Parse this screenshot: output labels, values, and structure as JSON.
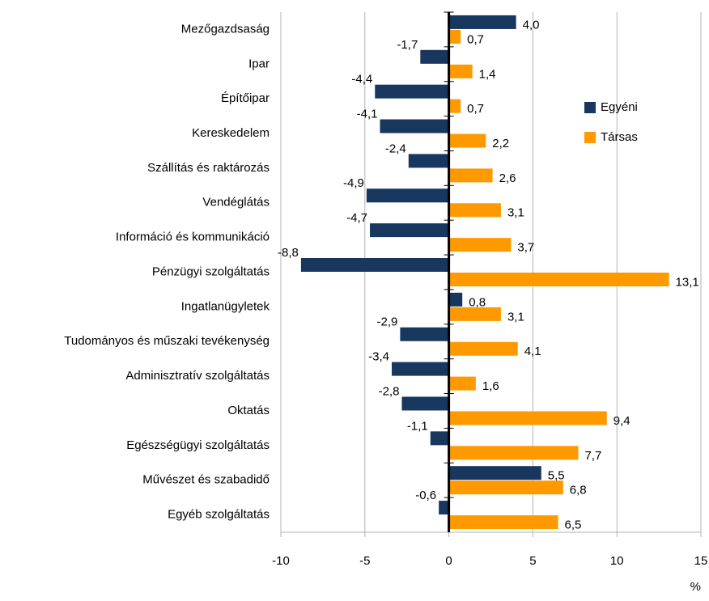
{
  "chart_data": {
    "type": "hbar",
    "categories": [
      "Mezőgazdsaság",
      "Ipar",
      "Építőipar",
      "Kereskedelem",
      "Szállítás és raktározás",
      "Vendéglátás",
      "Információ és kommunikáció",
      "Pénzügyi szolgáltatás",
      "Ingatlanügyletek",
      "Tudományos és műszaki tevékenység",
      "Adminisztratív szolgáltatás",
      "Oktatás",
      "Egészségügyi szolgáltatás",
      "Művészet és szabadidő",
      "Egyéb szolgáltatás"
    ],
    "series": [
      {
        "name": "Egyéni",
        "color": "#17375e",
        "values": [
          4.0,
          -1.7,
          -4.4,
          -4.1,
          -2.4,
          -4.9,
          -4.7,
          -8.8,
          0.8,
          -2.9,
          -3.4,
          -2.8,
          -1.1,
          5.5,
          -0.6
        ],
        "value_labels": [
          "4,0",
          "-1,7",
          "-4,4",
          "-4,1",
          "-2,4",
          "-4,9",
          "-4,7",
          "-8,8",
          "0,8",
          "-2,9",
          "-3,4",
          "-2,8",
          "-1,1",
          "5,5",
          "-0,6"
        ]
      },
      {
        "name": "Társas",
        "color": "#ff9900",
        "values": [
          0.7,
          1.4,
          0.7,
          2.2,
          2.6,
          3.1,
          3.7,
          13.1,
          3.1,
          4.1,
          1.6,
          9.4,
          7.7,
          6.8,
          6.5
        ],
        "value_labels": [
          "0,7",
          "1,4",
          "0,7",
          "2,2",
          "2,6",
          "3,1",
          "3,7",
          "13,1",
          "3,1",
          "4,1",
          "1,6",
          "9,4",
          "7,7",
          "6,8",
          "6,5"
        ]
      }
    ],
    "xlim": [
      -10,
      15
    ],
    "xticks": [
      -10,
      -5,
      0,
      5,
      10,
      15
    ],
    "x_axis_label": "%",
    "grid": true,
    "legend": "upper right"
  }
}
